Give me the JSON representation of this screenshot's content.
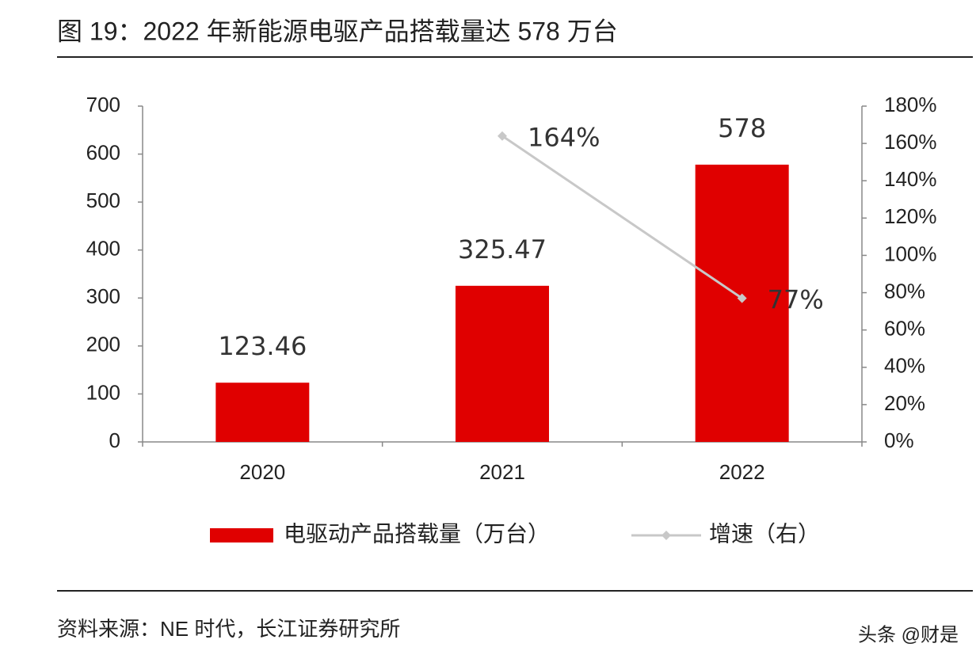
{
  "chart_data": {
    "type": "bar",
    "title": "图 19：2022 年新能源电驱产品搭载量达 578 万台",
    "categories": [
      "2020",
      "2021",
      "2022"
    ],
    "series": [
      {
        "name": "电驱动产品搭载量（万台）",
        "type": "bar",
        "color": "#e00000",
        "values": [
          123.46,
          325.47,
          578
        ]
      },
      {
        "name": "增速（右）",
        "type": "line",
        "axis": "y2",
        "color": "#c8c8c8",
        "values": [
          null,
          164,
          77
        ],
        "value_labels": [
          null,
          "164%",
          "77%"
        ]
      }
    ],
    "ylim": [
      0,
      700
    ],
    "yticks": [
      0,
      100,
      200,
      300,
      400,
      500,
      600,
      700
    ],
    "y2lim": [
      0,
      180
    ],
    "y2ticks": [
      {
        "value": 0,
        "label": "0%"
      },
      {
        "value": 20,
        "label": "20%"
      },
      {
        "value": 40,
        "label": "40%"
      },
      {
        "value": 60,
        "label": "60%"
      },
      {
        "value": 80,
        "label": "80%"
      },
      {
        "value": 100,
        "label": "100%"
      },
      {
        "value": 120,
        "label": "120%"
      },
      {
        "value": 140,
        "label": "140%"
      },
      {
        "value": 160,
        "label": "160%"
      },
      {
        "value": 180,
        "label": "180%"
      }
    ],
    "legend": "bottom"
  },
  "source": "资料来源：NE 时代，长江证券研究所",
  "watermark": "头条 @财是"
}
